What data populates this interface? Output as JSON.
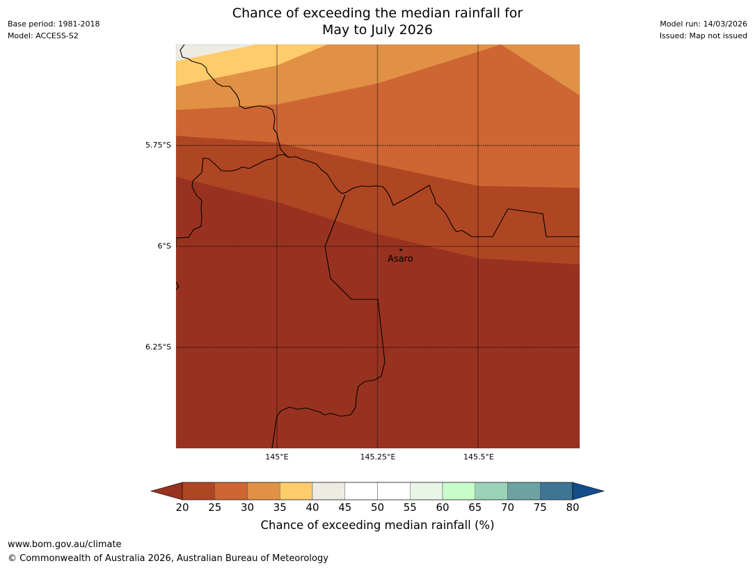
{
  "title": {
    "line1": "Chance of exceeding the median rainfall for",
    "line2": "May to July 2026"
  },
  "meta": {
    "base_period": "Base period: 1981-2018",
    "model": "Model: ACCESS-S2",
    "model_run": "Model run: 14/03/2026",
    "issued": "Issued: Map not issued"
  },
  "map": {
    "latitude_labels": [
      "5.75°S",
      "6°S",
      "6.25°S"
    ],
    "longitude_labels": [
      "145°E",
      "145.25°E",
      "145.5°E"
    ],
    "place": "Asaro"
  },
  "legend": {
    "title": "Chance of exceeding median rainfall (%)",
    "ticks": [
      "20",
      "25",
      "30",
      "35",
      "40",
      "45",
      "50",
      "55",
      "60",
      "65",
      "70",
      "75",
      "80"
    ],
    "under_color": "#983220",
    "over_color": "#134d8a",
    "colors": [
      "#af4623",
      "#ce6634",
      "#e19145",
      "#fecc6a",
      "#eeebe3",
      "#ffffff",
      "#ffffff",
      "#e9f6e7",
      "#c9fccb",
      "#9bd3b9",
      "#6da2a3",
      "#3e7595"
    ],
    "map_palette": {
      "p20": "#983220",
      "p25": "#af4623",
      "p30": "#ce6634",
      "p35": "#e19145",
      "p40": "#fecc6a",
      "p45": "#eeebe3"
    }
  },
  "footer": {
    "url": "www.bom.gov.au/climate",
    "copyright": "© Commonwealth of Australia 2026, Australian Bureau of Meteorology"
  }
}
